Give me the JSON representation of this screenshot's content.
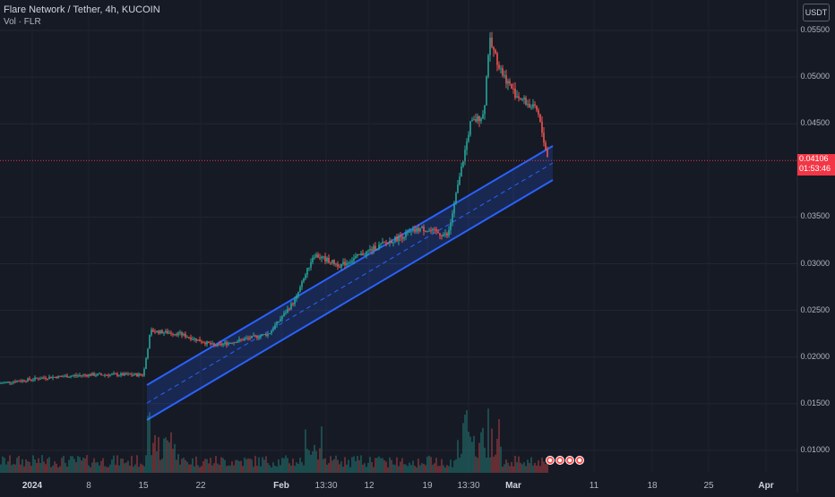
{
  "header": {
    "symbol_line": "Flare Network / Tether, 4h, KUCOIN",
    "volume_line": "Vol · FLR"
  },
  "currency_button": "USDT",
  "price_axis": [
    "0.05500",
    "0.05000",
    "0.04500",
    "0.03500",
    "0.03000",
    "0.02500",
    "0.02000",
    "0.01500",
    "0.01000"
  ],
  "last_price": {
    "value": "0.04106",
    "countdown": "01:53:46"
  },
  "time_axis": [
    "2024",
    "8",
    "15",
    "22",
    "Feb",
    "13:30",
    "12",
    "19",
    "13:30",
    "Mar",
    "11",
    "18",
    "25",
    "Apr"
  ],
  "time_axis_bold": [
    "2024",
    "Feb",
    "Mar",
    "Apr"
  ],
  "colors": {
    "up": "#26a69a",
    "down": "#ef5350",
    "channel": "#2962ff",
    "channel_fill": "#2962ff33",
    "background": "#161a25"
  },
  "chart_data": {
    "type": "candlestick",
    "symbol": "Flare Network / Tether",
    "interval": "4h",
    "exchange": "KUCOIN",
    "approx_close_series": [
      {
        "time": "2024-01-01",
        "close": 0.0172
      },
      {
        "time": "2024-01-08",
        "close": 0.0178
      },
      {
        "time": "2024-01-15",
        "close": 0.0181
      },
      {
        "time": "2024-01-15",
        "close": 0.0228
      },
      {
        "time": "2024-01-22",
        "close": 0.0212
      },
      {
        "time": "2024-01-29",
        "close": 0.0225
      },
      {
        "time": "2024-02-05",
        "close": 0.03
      },
      {
        "time": "2024-02-12",
        "close": 0.0318
      },
      {
        "time": "2024-02-19",
        "close": 0.034
      },
      {
        "time": "2024-02-26",
        "close": 0.045
      },
      {
        "time": "2024-03-01",
        "close": 0.052
      },
      {
        "time": "2024-03-04",
        "close": 0.047
      },
      {
        "time": "2024-03-06",
        "close": 0.04106
      }
    ],
    "ylim": [
      0.0095,
      0.0565
    ],
    "channel": {
      "upper": [
        [
          0.0167,
          "2024-01-15"
        ],
        [
          0.0423,
          "2024-03-06"
        ]
      ],
      "lower": [
        [
          0.013,
          "2024-01-15"
        ],
        [
          0.0385,
          "2024-03-06"
        ]
      ]
    },
    "grid": true
  }
}
